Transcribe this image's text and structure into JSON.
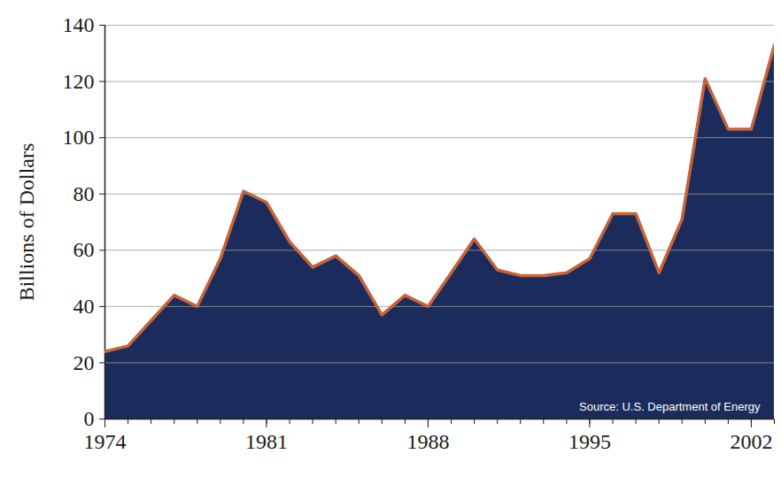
{
  "chart_data": {
    "type": "line",
    "y_label": "Billions of Dollars",
    "annotation": "Source: U.S. Department of Energy",
    "x": [
      1974,
      1975,
      1976,
      1977,
      1978,
      1979,
      1980,
      1981,
      1982,
      1983,
      1984,
      1985,
      1986,
      1987,
      1988,
      1989,
      1990,
      1991,
      1992,
      1993,
      1994,
      1995,
      1996,
      1997,
      1998,
      1999,
      2000,
      2001,
      2002,
      2003
    ],
    "values": [
      24,
      26,
      35,
      44,
      40,
      57,
      81,
      77,
      63,
      54,
      58,
      51,
      37,
      44,
      40,
      52,
      64,
      53,
      51,
      51,
      52,
      57,
      73,
      73,
      52,
      71,
      121,
      103,
      103,
      133
    ],
    "color": "#c4643a",
    "xlim": [
      1974,
      2003
    ],
    "xticks": [
      1974,
      1981,
      1988,
      1995,
      2002
    ],
    "ylim": [
      0,
      140
    ],
    "yticks": [
      0,
      20,
      40,
      60,
      80,
      100,
      120,
      140
    ],
    "grid": true
  }
}
